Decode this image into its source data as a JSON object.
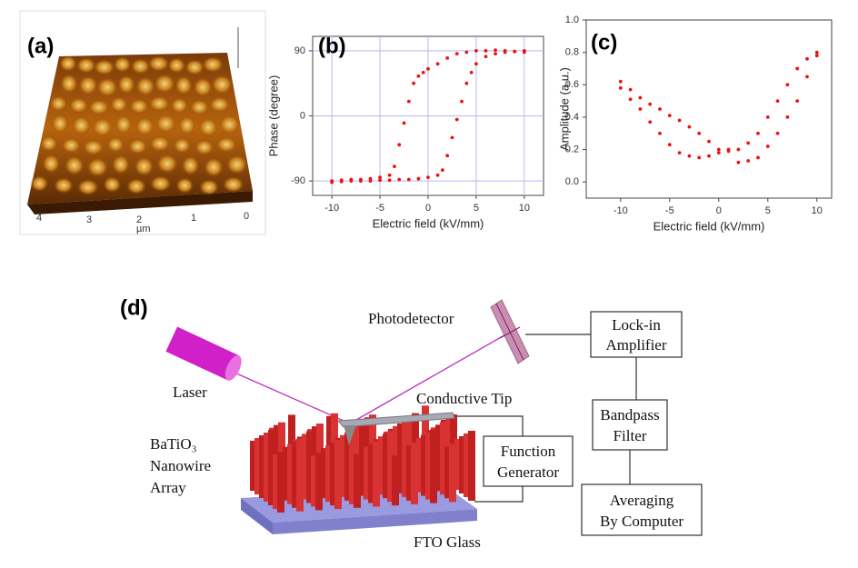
{
  "panel_a": {
    "label": "(a)",
    "x_ticks": [
      "4",
      "3",
      "2",
      "1",
      "0"
    ],
    "x_unit": "µm"
  },
  "chart_data": [
    {
      "type": "scatter",
      "panel_label": "(b)",
      "x_label": "Electric field (kV/mm)",
      "y_label": "Phase (degree)",
      "xlim": [
        -12,
        12
      ],
      "ylim": [
        -110,
        110
      ],
      "xticks": [
        -10,
        -5,
        0,
        5,
        10
      ],
      "yticks": [
        -90,
        0,
        90
      ],
      "grid": true,
      "series": [
        {
          "color": "#ee1111",
          "x": [
            -10,
            -9,
            -8,
            -7,
            -6,
            -5,
            -4,
            -3.5,
            -3,
            -2.5,
            -2,
            -1.5,
            -1,
            -0.5,
            0,
            1,
            2,
            3,
            4,
            5,
            6,
            7,
            8,
            9,
            10
          ],
          "values": [
            -90,
            -89,
            -88,
            -88,
            -87,
            -85,
            -82,
            -70,
            -40,
            -10,
            20,
            45,
            55,
            60,
            65,
            72,
            80,
            86,
            88,
            90,
            90,
            91,
            90,
            89,
            88
          ]
        },
        {
          "color": "#ee1111",
          "x": [
            -10,
            -9,
            -8,
            -7,
            -6,
            -5,
            -4,
            -3,
            -2,
            -1,
            0,
            1,
            1.5,
            2,
            2.5,
            3,
            3.5,
            4,
            4.5,
            5,
            6,
            7,
            8,
            9,
            10
          ],
          "values": [
            -92,
            -91,
            -90,
            -90,
            -90,
            -89,
            -89,
            -88,
            -88,
            -87,
            -85,
            -82,
            -75,
            -55,
            -30,
            -5,
            20,
            45,
            60,
            72,
            82,
            86,
            88,
            89,
            90
          ]
        }
      ]
    },
    {
      "type": "scatter",
      "panel_label": "(c)",
      "x_label": "Electric field (kV/mm)",
      "y_label": "Amplitude (a.u.)",
      "xlim": [
        -13.5,
        11.5
      ],
      "ylim": [
        -0.1,
        1.0
      ],
      "xticks": [
        -10,
        -5,
        0,
        5,
        10
      ],
      "yticks": [
        {
          "value": 0,
          "label": "0.0"
        },
        0.2,
        0.4,
        0.6,
        0.8,
        {
          "value": 1,
          "label": "1.0"
        }
      ],
      "grid": false,
      "series": [
        {
          "color": "#ee1111",
          "x": [
            -10,
            -9,
            -8,
            -7,
            -6,
            -5,
            -4,
            -3,
            -2,
            -1,
            0,
            1,
            2,
            3,
            4,
            5,
            6,
            7,
            8,
            9,
            10
          ],
          "values": [
            0.62,
            0.57,
            0.52,
            0.48,
            0.45,
            0.41,
            0.38,
            0.34,
            0.3,
            0.25,
            0.2,
            0.19,
            0.2,
            0.24,
            0.3,
            0.4,
            0.5,
            0.6,
            0.7,
            0.76,
            0.78
          ]
        },
        {
          "color": "#ee1111",
          "x": [
            -10,
            -9,
            -8,
            -7,
            -6,
            -5,
            -4,
            -3,
            -2,
            -1,
            0,
            1,
            2,
            3,
            4,
            5,
            6,
            7,
            8,
            9,
            10
          ],
          "values": [
            0.58,
            0.51,
            0.45,
            0.37,
            0.3,
            0.23,
            0.18,
            0.16,
            0.15,
            0.16,
            0.18,
            0.2,
            0.12,
            0.13,
            0.15,
            0.22,
            0.3,
            0.4,
            0.5,
            0.65,
            0.8
          ]
        }
      ]
    }
  ],
  "diagram": {
    "label": "(d)",
    "photodetector": "Photodetector",
    "laser": "Laser",
    "conductive_tip": "Conductive Tip",
    "nanowire_array": [
      "BaTiO₃",
      "Nanowire",
      "Array"
    ],
    "fto_glass": "FTO Glass",
    "lock_in": [
      "Lock-in",
      "Amplifier"
    ],
    "bandpass": [
      "Bandpass",
      "Filter"
    ],
    "averaging": [
      "Averaging",
      "By Computer"
    ],
    "function_generator": [
      "Function",
      "Generator"
    ]
  }
}
